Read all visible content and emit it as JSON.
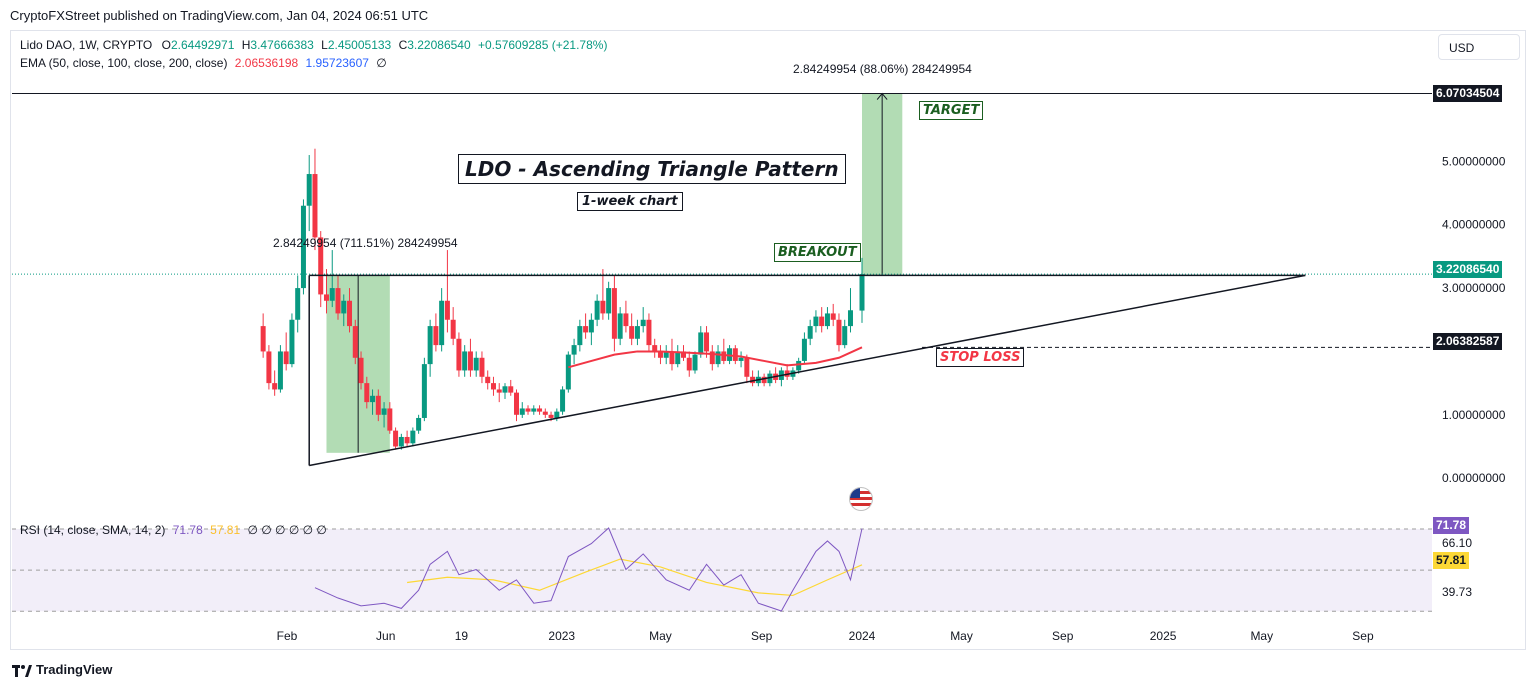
{
  "publisher_line": "CryptoFXStreet published on TradingView.com, Jan 04, 2024 06:51 UTC",
  "legend": {
    "symbol": "Lido DAO, 1W, CRYPTO",
    "open_label": "O",
    "open": "2.64492971",
    "high_label": "H",
    "high": "3.47666383",
    "low_label": "L",
    "low": "2.45005133",
    "close_label": "C",
    "close": "3.22086540",
    "change": "+0.57609285 (+21.78%)",
    "ema_label": "EMA (50, close, 100, close, 200, close)",
    "ema1": "2.06536198",
    "ema2": "1.95723607",
    "ema3": "∅"
  },
  "currency_button": "USD",
  "annotations": {
    "title": "LDO - Ascending Triangle Pattern",
    "subtitle": "1-week chart",
    "breakout": "BREAKOUT",
    "target": "TARGET",
    "stop_loss": "STOP LOSS",
    "measure_top": "2.84249954 (88.06%) 284249954",
    "measure_left": "2.84249954 (711.51%) 284249954"
  },
  "price_tags": {
    "target": "6.07034504",
    "current": "3.22086540",
    "stop": "2.06382587"
  },
  "rsi": {
    "label": "RSI (14, close, SMA, 14, 2)",
    "rsi_value": "71.78",
    "sma_value": "57.81",
    "extra": "∅ ∅ ∅ ∅ ∅ ∅",
    "tag_rsi": "71.78",
    "level_upper": "66.10",
    "tag_sma": "57.81",
    "level_lower": "39.73"
  },
  "footer": "TradingView",
  "colors": {
    "up": "#089981",
    "down": "#f23645",
    "ema": "#f23645",
    "rsi_line": "#7e57c2",
    "rsi_sma": "#fdd835",
    "measure_fill": "#a5d6a7"
  },
  "chart_data": {
    "type": "candlestick",
    "interval": "1W",
    "y_ticks": [
      "5.00000000",
      "4.00000000",
      "3.00000000",
      "1.00000000",
      "0.00000000"
    ],
    "ylim": [
      -0.55,
      6.6
    ],
    "x_ticks": [
      "Feb",
      "Jun",
      "19",
      "2023",
      "May",
      "Sep",
      "2024",
      "May",
      "Sep",
      "2025",
      "May",
      "Sep"
    ],
    "x_tick_dates": [
      "2022-02-01",
      "2022-06-01",
      "2022-09-01",
      "2023-01-01",
      "2023-05-01",
      "2023-09-01",
      "2024-01-01",
      "2024-05-01",
      "2024-09-01",
      "2025-01-01",
      "2025-05-01",
      "2025-09-01"
    ],
    "candles": [
      {
        "t": "2022-01-03",
        "o": 2.4,
        "h": 2.6,
        "l": 1.9,
        "c": 2.0
      },
      {
        "t": "2022-01-10",
        "o": 2.0,
        "h": 2.1,
        "l": 1.4,
        "c": 1.5
      },
      {
        "t": "2022-01-17",
        "o": 1.5,
        "h": 1.7,
        "l": 1.3,
        "c": 1.4
      },
      {
        "t": "2022-01-24",
        "o": 1.4,
        "h": 2.1,
        "l": 1.35,
        "c": 2.0
      },
      {
        "t": "2022-01-31",
        "o": 2.0,
        "h": 2.3,
        "l": 1.7,
        "c": 1.8
      },
      {
        "t": "2022-02-07",
        "o": 1.8,
        "h": 2.6,
        "l": 1.75,
        "c": 2.5
      },
      {
        "t": "2022-02-14",
        "o": 2.5,
        "h": 3.2,
        "l": 2.3,
        "c": 3.0
      },
      {
        "t": "2022-02-21",
        "o": 3.0,
        "h": 4.4,
        "l": 2.9,
        "c": 4.3
      },
      {
        "t": "2022-02-28",
        "o": 4.3,
        "h": 5.1,
        "l": 3.9,
        "c": 4.8
      },
      {
        "t": "2022-03-07",
        "o": 4.8,
        "h": 5.2,
        "l": 3.6,
        "c": 3.8
      },
      {
        "t": "2022-03-14",
        "o": 3.8,
        "h": 3.9,
        "l": 2.7,
        "c": 2.9
      },
      {
        "t": "2022-03-21",
        "o": 2.9,
        "h": 3.3,
        "l": 2.6,
        "c": 2.8
      },
      {
        "t": "2022-03-28",
        "o": 2.8,
        "h": 3.6,
        "l": 2.7,
        "c": 3.0
      },
      {
        "t": "2022-04-04",
        "o": 3.0,
        "h": 3.2,
        "l": 2.5,
        "c": 2.6
      },
      {
        "t": "2022-04-11",
        "o": 2.6,
        "h": 2.9,
        "l": 2.4,
        "c": 2.8
      },
      {
        "t": "2022-04-18",
        "o": 2.8,
        "h": 3.0,
        "l": 2.3,
        "c": 2.4
      },
      {
        "t": "2022-04-25",
        "o": 2.4,
        "h": 2.5,
        "l": 1.8,
        "c": 1.9
      },
      {
        "t": "2022-05-02",
        "o": 1.9,
        "h": 2.0,
        "l": 1.4,
        "c": 1.5
      },
      {
        "t": "2022-05-09",
        "o": 1.5,
        "h": 1.6,
        "l": 1.1,
        "c": 1.2
      },
      {
        "t": "2022-05-16",
        "o": 1.2,
        "h": 1.4,
        "l": 1.0,
        "c": 1.3
      },
      {
        "t": "2022-05-23",
        "o": 1.3,
        "h": 1.4,
        "l": 0.9,
        "c": 1.0
      },
      {
        "t": "2022-05-30",
        "o": 1.0,
        "h": 1.2,
        "l": 0.8,
        "c": 1.1
      },
      {
        "t": "2022-06-06",
        "o": 1.1,
        "h": 1.2,
        "l": 0.7,
        "c": 0.75
      },
      {
        "t": "2022-06-13",
        "o": 0.75,
        "h": 0.8,
        "l": 0.45,
        "c": 0.5
      },
      {
        "t": "2022-06-20",
        "o": 0.5,
        "h": 0.7,
        "l": 0.45,
        "c": 0.65
      },
      {
        "t": "2022-06-27",
        "o": 0.65,
        "h": 0.75,
        "l": 0.5,
        "c": 0.55
      },
      {
        "t": "2022-07-04",
        "o": 0.55,
        "h": 0.8,
        "l": 0.5,
        "c": 0.75
      },
      {
        "t": "2022-07-11",
        "o": 0.75,
        "h": 1.0,
        "l": 0.7,
        "c": 0.95
      },
      {
        "t": "2022-07-18",
        "o": 0.95,
        "h": 1.9,
        "l": 0.9,
        "c": 1.8
      },
      {
        "t": "2022-07-25",
        "o": 1.8,
        "h": 2.5,
        "l": 1.6,
        "c": 2.4
      },
      {
        "t": "2022-08-01",
        "o": 2.4,
        "h": 2.6,
        "l": 2.0,
        "c": 2.1
      },
      {
        "t": "2022-08-08",
        "o": 2.1,
        "h": 3.0,
        "l": 2.0,
        "c": 2.8
      },
      {
        "t": "2022-08-15",
        "o": 2.8,
        "h": 3.6,
        "l": 2.3,
        "c": 2.5
      },
      {
        "t": "2022-08-22",
        "o": 2.5,
        "h": 2.7,
        "l": 2.1,
        "c": 2.2
      },
      {
        "t": "2022-08-29",
        "o": 2.2,
        "h": 2.3,
        "l": 1.6,
        "c": 1.7
      },
      {
        "t": "2022-09-05",
        "o": 1.7,
        "h": 2.1,
        "l": 1.6,
        "c": 2.0
      },
      {
        "t": "2022-09-12",
        "o": 2.0,
        "h": 2.2,
        "l": 1.6,
        "c": 1.7
      },
      {
        "t": "2022-09-19",
        "o": 1.7,
        "h": 2.0,
        "l": 1.6,
        "c": 1.9
      },
      {
        "t": "2022-09-26",
        "o": 1.9,
        "h": 2.0,
        "l": 1.5,
        "c": 1.6
      },
      {
        "t": "2022-10-03",
        "o": 1.6,
        "h": 1.7,
        "l": 1.4,
        "c": 1.5
      },
      {
        "t": "2022-10-10",
        "o": 1.5,
        "h": 1.6,
        "l": 1.3,
        "c": 1.4
      },
      {
        "t": "2022-10-17",
        "o": 1.4,
        "h": 1.5,
        "l": 1.2,
        "c": 1.35
      },
      {
        "t": "2022-10-24",
        "o": 1.35,
        "h": 1.5,
        "l": 1.25,
        "c": 1.45
      },
      {
        "t": "2022-10-31",
        "o": 1.45,
        "h": 1.55,
        "l": 1.3,
        "c": 1.35
      },
      {
        "t": "2022-11-07",
        "o": 1.35,
        "h": 1.4,
        "l": 0.9,
        "c": 1.0
      },
      {
        "t": "2022-11-14",
        "o": 1.0,
        "h": 1.2,
        "l": 0.95,
        "c": 1.1
      },
      {
        "t": "2022-11-21",
        "o": 1.1,
        "h": 1.15,
        "l": 1.0,
        "c": 1.05
      },
      {
        "t": "2022-11-28",
        "o": 1.05,
        "h": 1.15,
        "l": 1.0,
        "c": 1.1
      },
      {
        "t": "2022-12-05",
        "o": 1.1,
        "h": 1.15,
        "l": 1.0,
        "c": 1.05
      },
      {
        "t": "2022-12-12",
        "o": 1.05,
        "h": 1.1,
        "l": 0.95,
        "c": 1.0
      },
      {
        "t": "2022-12-19",
        "o": 1.0,
        "h": 1.05,
        "l": 0.9,
        "c": 0.95
      },
      {
        "t": "2022-12-26",
        "o": 0.95,
        "h": 1.1,
        "l": 0.9,
        "c": 1.05
      },
      {
        "t": "2023-01-02",
        "o": 1.05,
        "h": 1.45,
        "l": 1.0,
        "c": 1.4
      },
      {
        "t": "2023-01-09",
        "o": 1.4,
        "h": 2.0,
        "l": 1.35,
        "c": 1.95
      },
      {
        "t": "2023-01-16",
        "o": 1.95,
        "h": 2.2,
        "l": 1.8,
        "c": 2.1
      },
      {
        "t": "2023-01-23",
        "o": 2.1,
        "h": 2.5,
        "l": 2.0,
        "c": 2.4
      },
      {
        "t": "2023-01-30",
        "o": 2.4,
        "h": 2.6,
        "l": 2.2,
        "c": 2.3
      },
      {
        "t": "2023-02-06",
        "o": 2.3,
        "h": 2.6,
        "l": 2.1,
        "c": 2.5
      },
      {
        "t": "2023-02-13",
        "o": 2.5,
        "h": 2.9,
        "l": 2.4,
        "c": 2.8
      },
      {
        "t": "2023-02-20",
        "o": 2.8,
        "h": 3.3,
        "l": 2.5,
        "c": 2.6
      },
      {
        "t": "2023-02-27",
        "o": 2.6,
        "h": 3.1,
        "l": 2.5,
        "c": 3.0
      },
      {
        "t": "2023-03-06",
        "o": 3.0,
        "h": 3.2,
        "l": 2.0,
        "c": 2.2
      },
      {
        "t": "2023-03-13",
        "o": 2.2,
        "h": 2.7,
        "l": 2.1,
        "c": 2.6
      },
      {
        "t": "2023-03-20",
        "o": 2.6,
        "h": 2.8,
        "l": 2.3,
        "c": 2.4
      },
      {
        "t": "2023-03-27",
        "o": 2.4,
        "h": 2.6,
        "l": 2.1,
        "c": 2.2
      },
      {
        "t": "2023-04-03",
        "o": 2.2,
        "h": 2.5,
        "l": 2.1,
        "c": 2.4
      },
      {
        "t": "2023-04-10",
        "o": 2.4,
        "h": 2.7,
        "l": 2.3,
        "c": 2.5
      },
      {
        "t": "2023-04-17",
        "o": 2.5,
        "h": 2.6,
        "l": 2.0,
        "c": 2.1
      },
      {
        "t": "2023-04-24",
        "o": 2.1,
        "h": 2.2,
        "l": 1.9,
        "c": 2.0
      },
      {
        "t": "2023-05-01",
        "o": 2.0,
        "h": 2.1,
        "l": 1.8,
        "c": 1.9
      },
      {
        "t": "2023-05-08",
        "o": 1.9,
        "h": 2.1,
        "l": 1.8,
        "c": 2.0
      },
      {
        "t": "2023-05-15",
        "o": 2.0,
        "h": 2.2,
        "l": 1.7,
        "c": 1.8
      },
      {
        "t": "2023-05-22",
        "o": 1.8,
        "h": 2.1,
        "l": 1.75,
        "c": 2.0
      },
      {
        "t": "2023-05-29",
        "o": 2.0,
        "h": 2.1,
        "l": 1.85,
        "c": 1.9
      },
      {
        "t": "2023-06-05",
        "o": 1.9,
        "h": 2.0,
        "l": 1.6,
        "c": 1.7
      },
      {
        "t": "2023-06-12",
        "o": 1.7,
        "h": 2.0,
        "l": 1.65,
        "c": 1.95
      },
      {
        "t": "2023-06-19",
        "o": 1.95,
        "h": 2.4,
        "l": 1.9,
        "c": 2.3
      },
      {
        "t": "2023-06-26",
        "o": 2.3,
        "h": 2.4,
        "l": 1.9,
        "c": 2.0
      },
      {
        "t": "2023-07-03",
        "o": 2.0,
        "h": 2.1,
        "l": 1.7,
        "c": 1.8
      },
      {
        "t": "2023-07-10",
        "o": 1.8,
        "h": 2.1,
        "l": 1.75,
        "c": 2.0
      },
      {
        "t": "2023-07-17",
        "o": 2.0,
        "h": 2.2,
        "l": 1.8,
        "c": 1.85
      },
      {
        "t": "2023-07-24",
        "o": 1.85,
        "h": 2.1,
        "l": 1.8,
        "c": 2.05
      },
      {
        "t": "2023-07-31",
        "o": 2.05,
        "h": 2.1,
        "l": 1.8,
        "c": 1.85
      },
      {
        "t": "2023-08-07",
        "o": 1.85,
        "h": 2.0,
        "l": 1.75,
        "c": 1.9
      },
      {
        "t": "2023-08-14",
        "o": 1.9,
        "h": 1.95,
        "l": 1.5,
        "c": 1.6
      },
      {
        "t": "2023-08-21",
        "o": 1.6,
        "h": 1.7,
        "l": 1.45,
        "c": 1.5
      },
      {
        "t": "2023-08-28",
        "o": 1.5,
        "h": 1.7,
        "l": 1.45,
        "c": 1.6
      },
      {
        "t": "2023-09-04",
        "o": 1.6,
        "h": 1.65,
        "l": 1.45,
        "c": 1.5
      },
      {
        "t": "2023-09-11",
        "o": 1.5,
        "h": 1.7,
        "l": 1.45,
        "c": 1.65
      },
      {
        "t": "2023-09-18",
        "o": 1.65,
        "h": 1.75,
        "l": 1.5,
        "c": 1.55
      },
      {
        "t": "2023-09-25",
        "o": 1.55,
        "h": 1.75,
        "l": 1.45,
        "c": 1.7
      },
      {
        "t": "2023-10-02",
        "o": 1.7,
        "h": 1.8,
        "l": 1.55,
        "c": 1.6
      },
      {
        "t": "2023-10-09",
        "o": 1.6,
        "h": 1.75,
        "l": 1.55,
        "c": 1.7
      },
      {
        "t": "2023-10-16",
        "o": 1.7,
        "h": 1.9,
        "l": 1.65,
        "c": 1.85
      },
      {
        "t": "2023-10-23",
        "o": 1.85,
        "h": 2.3,
        "l": 1.8,
        "c": 2.2
      },
      {
        "t": "2023-10-30",
        "o": 2.2,
        "h": 2.5,
        "l": 2.1,
        "c": 2.4
      },
      {
        "t": "2023-11-06",
        "o": 2.4,
        "h": 2.65,
        "l": 2.3,
        "c": 2.55
      },
      {
        "t": "2023-11-13",
        "o": 2.55,
        "h": 2.7,
        "l": 2.3,
        "c": 2.4
      },
      {
        "t": "2023-11-20",
        "o": 2.4,
        "h": 2.7,
        "l": 2.35,
        "c": 2.6
      },
      {
        "t": "2023-11-27",
        "o": 2.6,
        "h": 2.75,
        "l": 2.4,
        "c": 2.5
      },
      {
        "t": "2023-12-04",
        "o": 2.5,
        "h": 2.6,
        "l": 2.0,
        "c": 2.1
      },
      {
        "t": "2023-12-11",
        "o": 2.1,
        "h": 2.5,
        "l": 2.05,
        "c": 2.4
      },
      {
        "t": "2023-12-18",
        "o": 2.4,
        "h": 3.0,
        "l": 2.3,
        "c": 2.65
      },
      {
        "t": "2024-01-01",
        "o": 2.64492971,
        "h": 3.47666383,
        "l": 2.45005133,
        "c": 3.2208654
      }
    ],
    "ema_series": {
      "name": "EMA",
      "points": [
        {
          "t": "2023-01-09",
          "v": 1.75
        },
        {
          "t": "2023-02-06",
          "v": 1.85
        },
        {
          "t": "2023-03-06",
          "v": 1.95
        },
        {
          "t": "2023-04-03",
          "v": 2.0
        },
        {
          "t": "2023-05-01",
          "v": 2.0
        },
        {
          "t": "2023-06-05",
          "v": 1.98
        },
        {
          "t": "2023-07-03",
          "v": 1.96
        },
        {
          "t": "2023-08-07",
          "v": 1.92
        },
        {
          "t": "2023-09-04",
          "v": 1.85
        },
        {
          "t": "2023-10-02",
          "v": 1.78
        },
        {
          "t": "2023-11-06",
          "v": 1.82
        },
        {
          "t": "2023-12-04",
          "v": 1.9
        },
        {
          "t": "2024-01-01",
          "v": 2.06536198
        }
      ]
    },
    "triangle": {
      "resistance": [
        {
          "t": "2022-02-28",
          "v": 3.2
        },
        {
          "t": "2025-06-23",
          "v": 3.2
        }
      ],
      "support": [
        {
          "t": "2022-02-28",
          "v": 0.2
        },
        {
          "t": "2025-06-23",
          "v": 3.2
        }
      ],
      "left_edge": [
        {
          "t": "2022-02-28",
          "v": 0.2
        },
        {
          "t": "2022-02-28",
          "v": 3.2
        }
      ]
    },
    "target_level": 6.07034504,
    "stop_level": 2.06382587,
    "current_level": 3.2208654,
    "measure_left": {
      "t1": "2022-03-21",
      "t2": "2022-06-06",
      "low": 0.4,
      "high": 3.2
    },
    "measure_top": {
      "t1": "2024-01-01",
      "t2": "2024-02-19",
      "low": 3.2,
      "high": 6.07034504
    },
    "rsi_series": {
      "name": "RSI",
      "points": [
        {
          "t": "2022-03-07",
          "v": 49
        },
        {
          "t": "2022-04-04",
          "v": 45
        },
        {
          "t": "2022-05-02",
          "v": 42
        },
        {
          "t": "2022-05-30",
          "v": 43
        },
        {
          "t": "2022-06-20",
          "v": 41
        },
        {
          "t": "2022-07-11",
          "v": 48
        },
        {
          "t": "2022-07-25",
          "v": 58
        },
        {
          "t": "2022-08-15",
          "v": 63
        },
        {
          "t": "2022-08-29",
          "v": 54
        },
        {
          "t": "2022-09-19",
          "v": 56
        },
        {
          "t": "2022-10-17",
          "v": 48
        },
        {
          "t": "2022-11-07",
          "v": 52
        },
        {
          "t": "2022-11-28",
          "v": 43
        },
        {
          "t": "2022-12-19",
          "v": 44
        },
        {
          "t": "2023-01-09",
          "v": 61
        },
        {
          "t": "2023-02-06",
          "v": 66
        },
        {
          "t": "2023-02-27",
          "v": 72
        },
        {
          "t": "2023-03-20",
          "v": 56
        },
        {
          "t": "2023-04-10",
          "v": 62
        },
        {
          "t": "2023-05-08",
          "v": 52
        },
        {
          "t": "2023-06-05",
          "v": 48
        },
        {
          "t": "2023-06-26",
          "v": 58
        },
        {
          "t": "2023-07-17",
          "v": 50
        },
        {
          "t": "2023-08-07",
          "v": 54
        },
        {
          "t": "2023-08-28",
          "v": 43
        },
        {
          "t": "2023-09-25",
          "v": 40
        },
        {
          "t": "2023-10-09",
          "v": 48
        },
        {
          "t": "2023-11-06",
          "v": 63
        },
        {
          "t": "2023-11-20",
          "v": 67
        },
        {
          "t": "2023-12-04",
          "v": 63
        },
        {
          "t": "2023-12-18",
          "v": 52
        },
        {
          "t": "2024-01-01",
          "v": 71.78
        }
      ]
    },
    "rsi_sma_series": {
      "name": "SMA",
      "points": [
        {
          "t": "2022-06-27",
          "v": 51
        },
        {
          "t": "2022-08-15",
          "v": 53
        },
        {
          "t": "2022-10-10",
          "v": 52
        },
        {
          "t": "2022-12-05",
          "v": 48
        },
        {
          "t": "2023-01-30",
          "v": 55
        },
        {
          "t": "2023-03-13",
          "v": 60
        },
        {
          "t": "2023-05-01",
          "v": 57
        },
        {
          "t": "2023-06-26",
          "v": 51
        },
        {
          "t": "2023-08-28",
          "v": 47
        },
        {
          "t": "2023-10-09",
          "v": 46
        },
        {
          "t": "2023-11-20",
          "v": 52
        },
        {
          "t": "2024-01-01",
          "v": 57.81
        }
      ]
    },
    "rsi_levels": [
      70,
      50,
      30
    ]
  }
}
